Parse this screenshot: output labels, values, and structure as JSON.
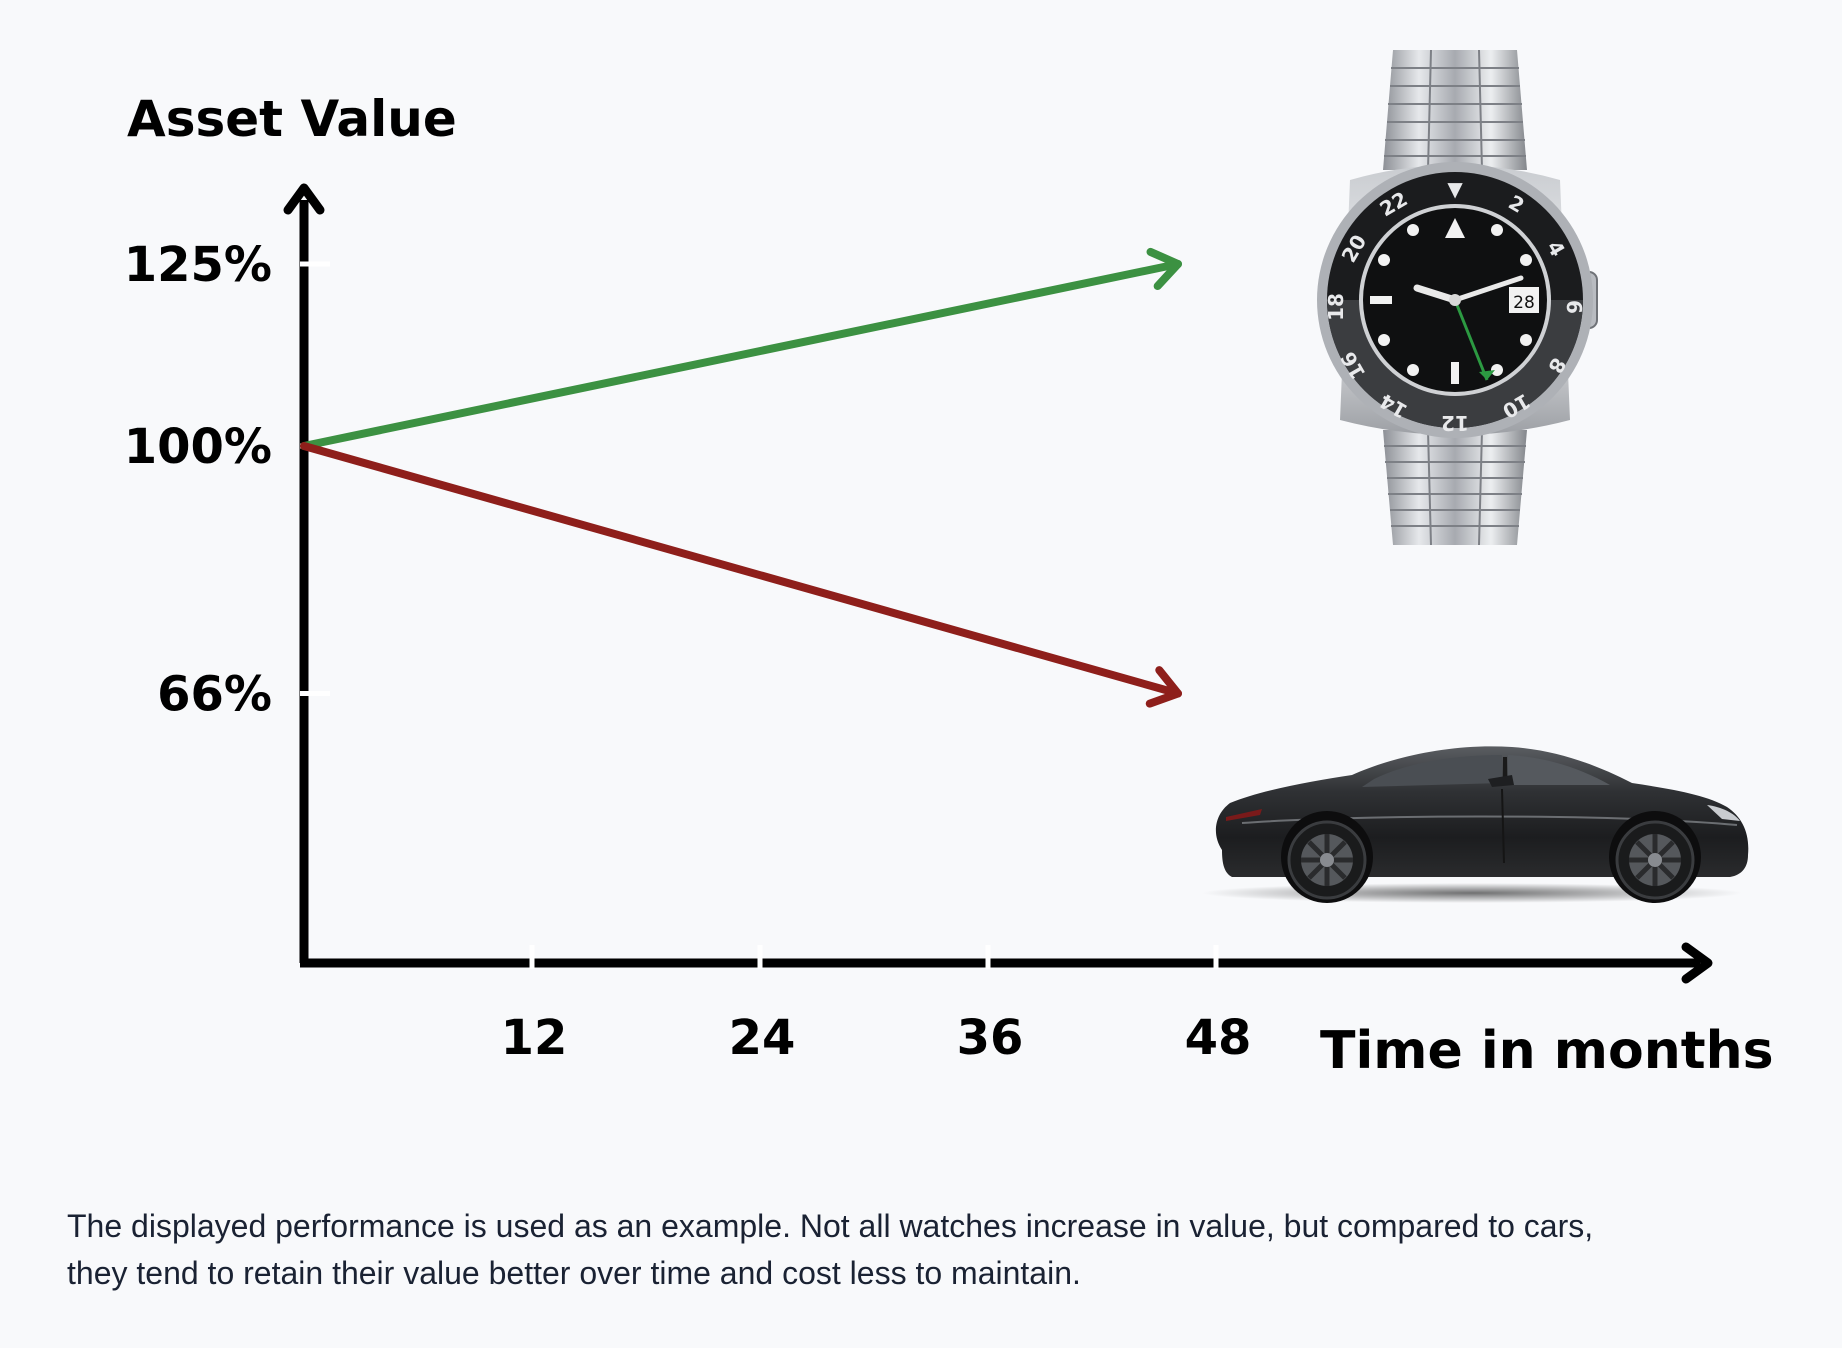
{
  "chart_data": {
    "type": "line",
    "title": "",
    "ylabel": "Asset Value",
    "xlabel": "Time in months",
    "x_ticks": [
      12,
      24,
      36,
      48
    ],
    "x_tick_labels": [
      "12",
      "24",
      "36",
      "48"
    ],
    "y_ticks": [
      66,
      100,
      125
    ],
    "y_tick_labels": [
      "66%",
      "100%",
      "125%"
    ],
    "xlim": [
      0,
      80
    ],
    "ylim": [
      25,
      150
    ],
    "grid": false,
    "legend": "none",
    "series": [
      {
        "key": "watch",
        "color": "#3c9142",
        "x": [
          0,
          46
        ],
        "y": [
          100,
          125
        ],
        "marker": "watch-icon"
      },
      {
        "key": "car",
        "color": "#8e1f1b",
        "x": [
          0,
          46
        ],
        "y": [
          100,
          66
        ],
        "marker": "car-icon"
      }
    ]
  },
  "disclaimer": "The displayed performance is used as an example. Not all watches increase in value, but compared to cars, they tend to retain their value better over time and cost less to maintain."
}
